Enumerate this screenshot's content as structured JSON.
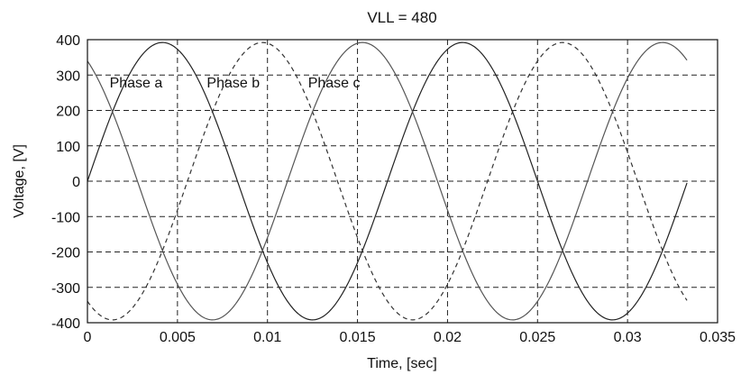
{
  "chart_data": {
    "type": "line",
    "title": "VLL = 480",
    "xlabel": "Time, [sec]",
    "ylabel": "Voltage, [V]",
    "xlim": [
      0,
      0.035
    ],
    "ylim": [
      -400,
      400
    ],
    "xticks": [
      0,
      0.005,
      0.01,
      0.015,
      0.02,
      0.025,
      0.03,
      0.035
    ],
    "xtick_labels": [
      "0",
      "0.005",
      "0.01",
      "0.015",
      "0.02",
      "0.025",
      "0.03",
      "0.035"
    ],
    "yticks": [
      -400,
      -300,
      -200,
      -100,
      0,
      100,
      200,
      300,
      400
    ],
    "ytick_labels": [
      "-400",
      "-300",
      "-200",
      "-100",
      "0",
      "100",
      "200",
      "300",
      "400"
    ],
    "grid": true,
    "x_range": [
      0,
      0.0333
    ],
    "series": [
      {
        "name": "Phase a",
        "amplitude": 392,
        "frequency_hz": 60,
        "phase_deg": 0,
        "line_style": "solid",
        "color": "#222222"
      },
      {
        "name": "Phase b",
        "amplitude": 392,
        "frequency_hz": 60,
        "phase_deg": -120,
        "line_style": "dashed",
        "color": "#333333"
      },
      {
        "name": "Phase c",
        "amplitude": 392,
        "frequency_hz": 60,
        "phase_deg": 120,
        "line_style": "solid",
        "color": "#555555"
      }
    ],
    "annotations": [
      {
        "text": "Phase a",
        "x": 0.0027,
        "y": 280
      },
      {
        "text": "Phase b",
        "x": 0.0081,
        "y": 280
      },
      {
        "text": "Phase c",
        "x": 0.0137,
        "y": 280
      }
    ]
  }
}
